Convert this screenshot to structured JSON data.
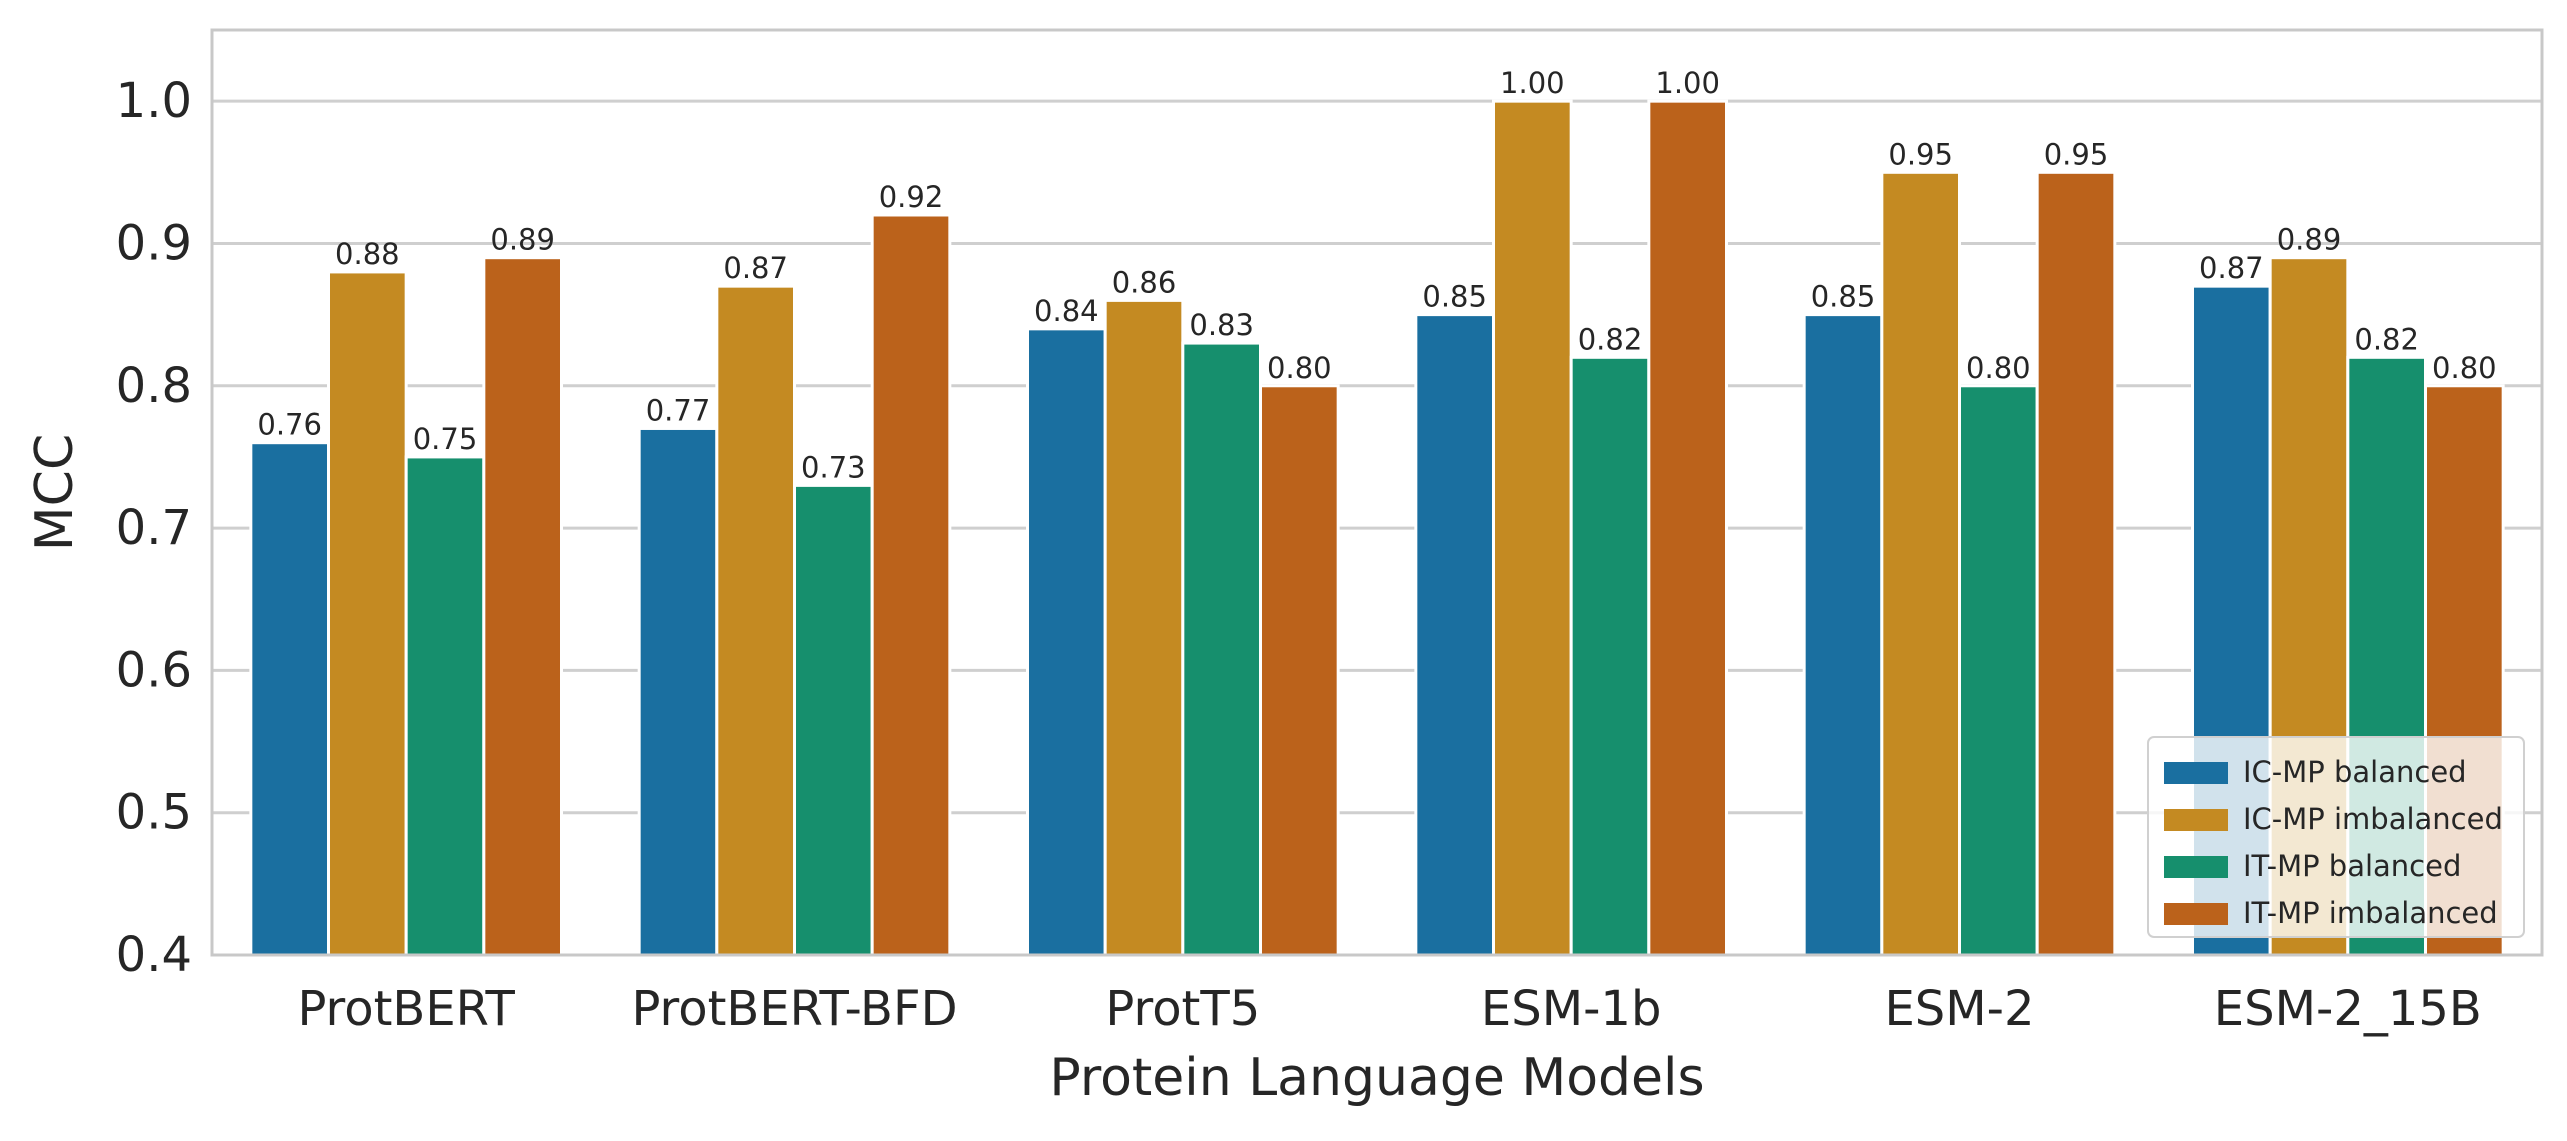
{
  "chart_data": {
    "type": "bar",
    "title": "",
    "xlabel": "Protein Language Models",
    "ylabel": "MCC",
    "ylim": [
      0.4,
      1.05
    ],
    "yticks": [
      "0.4",
      "0.5",
      "0.6",
      "0.7",
      "0.8",
      "0.9",
      "1.0"
    ],
    "grid": "horizontal",
    "legend_position": "bottom-right",
    "categories": [
      "ProtBERT",
      "ProtBERT-BFD",
      "ProtT5",
      "ESM-1b",
      "ESM-2",
      "ESM-2_15B"
    ],
    "series": [
      {
        "name": "IC-MP balanced",
        "color": "#1a6fa0",
        "values": [
          0.76,
          0.77,
          0.84,
          0.85,
          0.85,
          0.87
        ],
        "labels": [
          "0.76",
          "0.77",
          "0.84",
          "0.85",
          "0.85",
          "0.87"
        ]
      },
      {
        "name": "IC-MP imbalanced",
        "color": "#c48a22",
        "values": [
          0.88,
          0.87,
          0.86,
          1.0,
          0.95,
          0.89
        ],
        "labels": [
          "0.88",
          "0.87",
          "0.86",
          "1.00",
          "0.95",
          "0.89"
        ]
      },
      {
        "name": "IT-MP balanced",
        "color": "#168f6d",
        "values": [
          0.75,
          0.73,
          0.83,
          0.82,
          0.8,
          0.82
        ],
        "labels": [
          "0.75",
          "0.73",
          "0.83",
          "0.82",
          "0.80",
          "0.82"
        ]
      },
      {
        "name": "IT-MP imbalanced",
        "color": "#bb621b",
        "values": [
          0.89,
          0.92,
          0.8,
          1.0,
          0.95,
          0.8
        ],
        "labels": [
          "0.89",
          "0.92",
          "0.80",
          "1.00",
          "0.95",
          "0.80"
        ]
      }
    ]
  }
}
